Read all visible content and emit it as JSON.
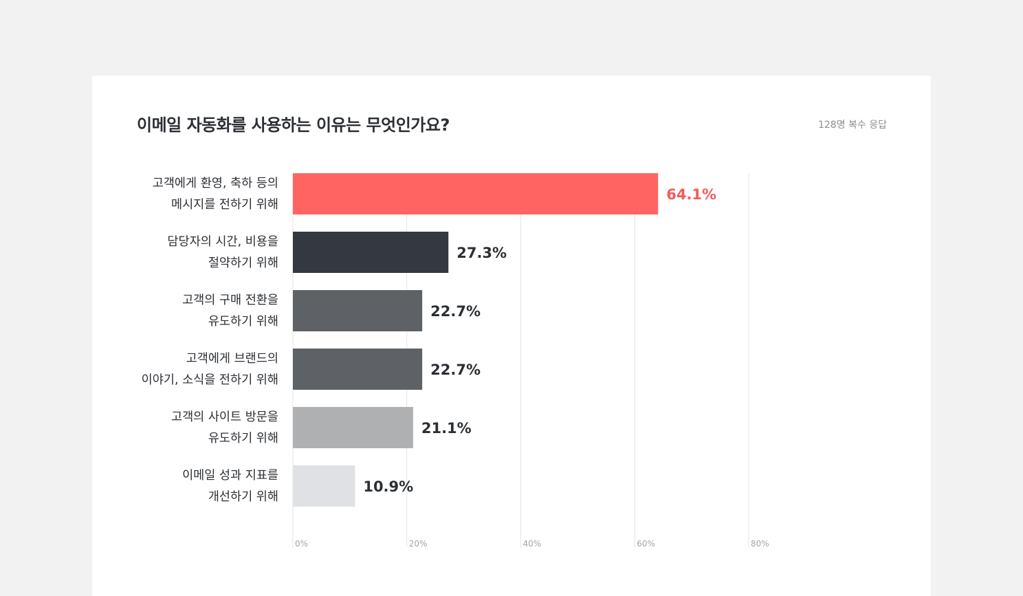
{
  "header": {
    "title": "이메일 자동화를 사용하는 이유는 무엇인가요?",
    "respondents": "128명 복수 응답"
  },
  "chart_data": {
    "type": "bar",
    "orientation": "horizontal",
    "categories": [
      [
        "고객에게 환영, 축하 등의",
        "메시지를 전하기 위해"
      ],
      [
        "담당자의 시간, 비용을",
        "절약하기 위해"
      ],
      [
        "고객의 구매 전환을",
        "유도하기 위해"
      ],
      [
        "고객에게 브랜드의",
        "이야기, 소식을 전하기 위해"
      ],
      [
        "고객의 사이트 방문을",
        "유도하기 위해"
      ],
      [
        "이메일 성과 지표를",
        "개선하기 위해"
      ]
    ],
    "values": [
      64.1,
      27.3,
      22.7,
      22.7,
      21.1,
      10.9
    ],
    "value_labels": [
      "64.1%",
      "27.3%",
      "22.7%",
      "22.7%",
      "21.1%",
      "10.9%"
    ],
    "bar_colors": [
      "#ff6462",
      "#343840",
      "#5e6166",
      "#5e6166",
      "#afb0b2",
      "#e0e1e4"
    ],
    "label_colors": [
      "#f25c5a",
      "#2b2f35",
      "#2b2f35",
      "#2b2f35",
      "#2b2f35",
      "#2b2f35"
    ],
    "xticks": [
      0,
      20,
      40,
      60,
      80
    ],
    "xtick_labels": [
      "0%",
      "20%",
      "40%",
      "60%",
      "80%"
    ],
    "xlim": [
      0,
      80
    ],
    "grid": true
  }
}
